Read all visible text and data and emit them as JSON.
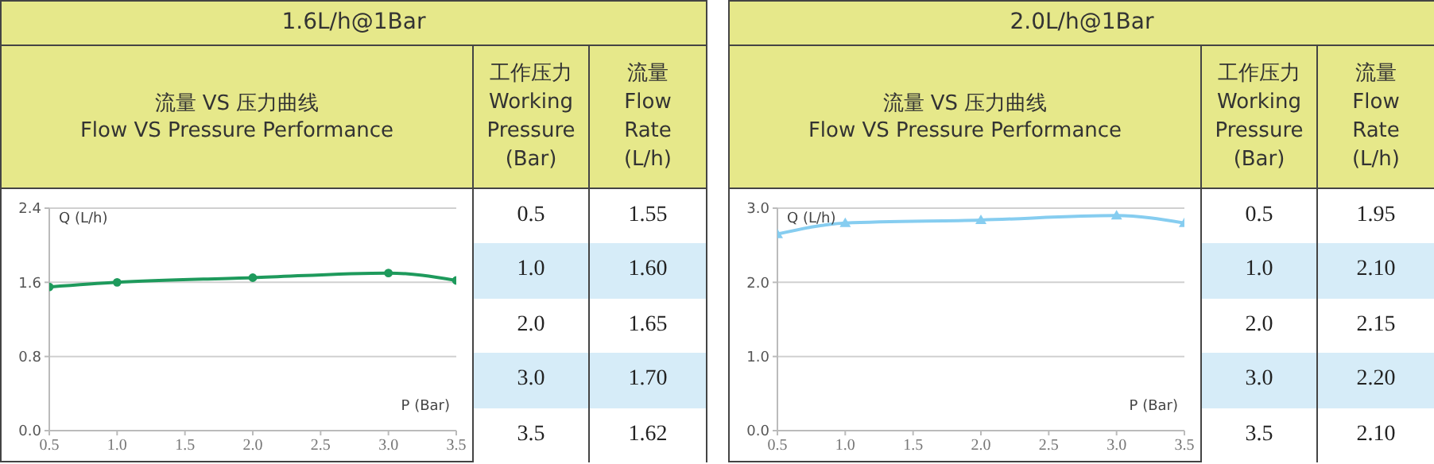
{
  "chart_data": [
    {
      "type": "line",
      "title": "1.6L/h@1Bar",
      "subtitle": "流量 VS 压力曲线\nFlow VS Pressure Performance",
      "xlabel": "P (Bar)",
      "ylabel": "Q (L/h)",
      "annotations": [
        "工作压力\nWorking\nPressure\n(Bar)",
        "流量\nFlow\nRate\n(L/h)",
        "1.55",
        "1.60",
        "1.65",
        "1.70",
        "1.62"
      ],
      "x": [
        0.5,
        1,
        2,
        3,
        3.5
      ],
      "series": [
        {
          "color": "#1e9a5c",
          "values": [
            1.55,
            1.6,
            1.65,
            1.7,
            1.62
          ]
        }
      ],
      "marker": "circle",
      "grid": "y",
      "xlim": [
        0.5,
        3.5
      ],
      "xticks": [
        {
          "value": 0.5,
          "label": "0.5"
        },
        {
          "value": 1,
          "label": "1.0"
        },
        {
          "value": 1.5,
          "label": "1.5"
        },
        {
          "value": 2,
          "label": "2.0"
        },
        {
          "value": 2.5,
          "label": "2.5"
        },
        {
          "value": 3,
          "label": "3.0"
        },
        {
          "value": 3.5,
          "label": "3.5"
        }
      ],
      "ylim": [
        0,
        2.4
      ],
      "yticks": [
        {
          "value": 0,
          "label": "0.0"
        },
        0.8,
        1.6,
        2.4
      ]
    },
    {
      "type": "line",
      "title": "2.0L/h@1Bar",
      "subtitle": "流量 VS 压力曲线\nFlow VS Pressure Performance",
      "xlabel": "P (Bar)",
      "ylabel": "Q (L/h)",
      "annotations": [
        "工作压力\nWorking\nPressure\n(Bar)",
        "流量\nFlow\nRate\n(L/h)",
        "1.95",
        "2.10",
        "2.15",
        "2.20",
        "2.10"
      ],
      "x": [
        0.5,
        1,
        2,
        3,
        3.5
      ],
      "series": [
        {
          "color": "#86cdf0",
          "values": [
            2.65,
            2.8,
            2.84,
            2.9,
            2.8
          ]
        }
      ],
      "marker": "triangle",
      "grid": "y",
      "xlim": [
        0.5,
        3.5
      ],
      "xticks": [
        {
          "value": 0.5,
          "label": "0.5"
        },
        {
          "value": 1,
          "label": "1.0"
        },
        {
          "value": 1.5,
          "label": "1.5"
        },
        {
          "value": 2,
          "label": "2.0"
        },
        {
          "value": 2.5,
          "label": "2.5"
        },
        {
          "value": 3,
          "label": "3.0"
        },
        {
          "value": 3.5,
          "label": "3.5"
        }
      ],
      "ylim": [
        0,
        3
      ],
      "yticks": [
        {
          "value": 0,
          "label": "0.0"
        },
        {
          "value": 1,
          "label": "1.0"
        },
        {
          "value": 2,
          "label": "2.0"
        },
        {
          "value": 3,
          "label": "3.0"
        }
      ]
    }
  ]
}
